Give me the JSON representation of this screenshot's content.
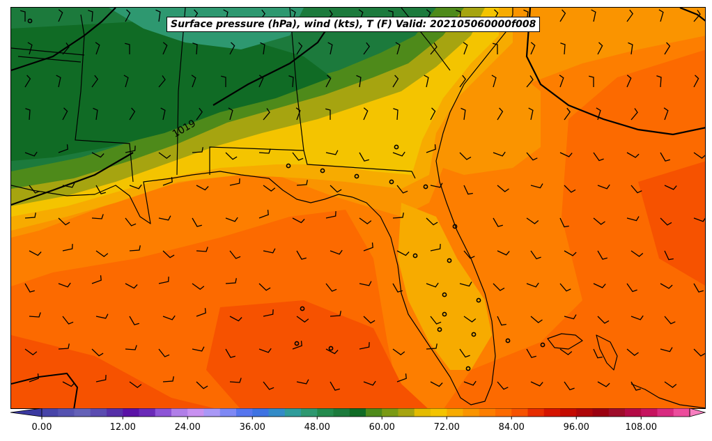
{
  "map": {
    "title": "Surface pressure (hPa), wind (kts), T (F) Valid: 202105060000f008",
    "isobar_label": "1019",
    "region": "Southeastern US, Gulf of Mexico and western Atlantic"
  },
  "colorbar": {
    "tick_labels": [
      "0.00",
      "12.00",
      "24.00",
      "36.00",
      "48.00",
      "60.00",
      "72.00",
      "84.00",
      "96.00",
      "108.00"
    ],
    "tick_values": [
      0,
      12,
      24,
      36,
      48,
      60,
      72,
      84,
      96,
      108
    ],
    "min": -6,
    "max": 120,
    "step": 3,
    "colors": [
      "#3a39a0",
      "#4744a8",
      "#5552b0",
      "#6461b7",
      "#5b4cb1",
      "#5630a8",
      "#5a12a6",
      "#6a2ab8",
      "#8d54d6",
      "#b07ee8",
      "#c890f0",
      "#a998f6",
      "#7e88f4",
      "#5675ee",
      "#3e72e2",
      "#338bc7",
      "#2f9c9a",
      "#2e9870",
      "#238a4d",
      "#1c7a3c",
      "#106b25",
      "#4e8a1a",
      "#7a9a14",
      "#a6a410",
      "#e4bb00",
      "#f4c400",
      "#f7ab00",
      "#fa9400",
      "#fd7e00",
      "#fc6a00",
      "#f65200",
      "#e72d00",
      "#d51400",
      "#c40a00",
      "#ae0609",
      "#9a0010",
      "#9e0c2a",
      "#b30a46",
      "#c6125e",
      "#d82a80",
      "#ec4c9c",
      "#f87fc0"
    ]
  },
  "legend_colors": {
    "t_below_50": "#106b25",
    "t_55": "#4e8a1a",
    "t_62": "#a6a410",
    "t_66": "#f4c400",
    "t_70": "#f7ab00",
    "t_74": "#fa9400",
    "t_78": "#fd7e00",
    "t_81": "#fc6a00",
    "t_84": "#f65200"
  }
}
